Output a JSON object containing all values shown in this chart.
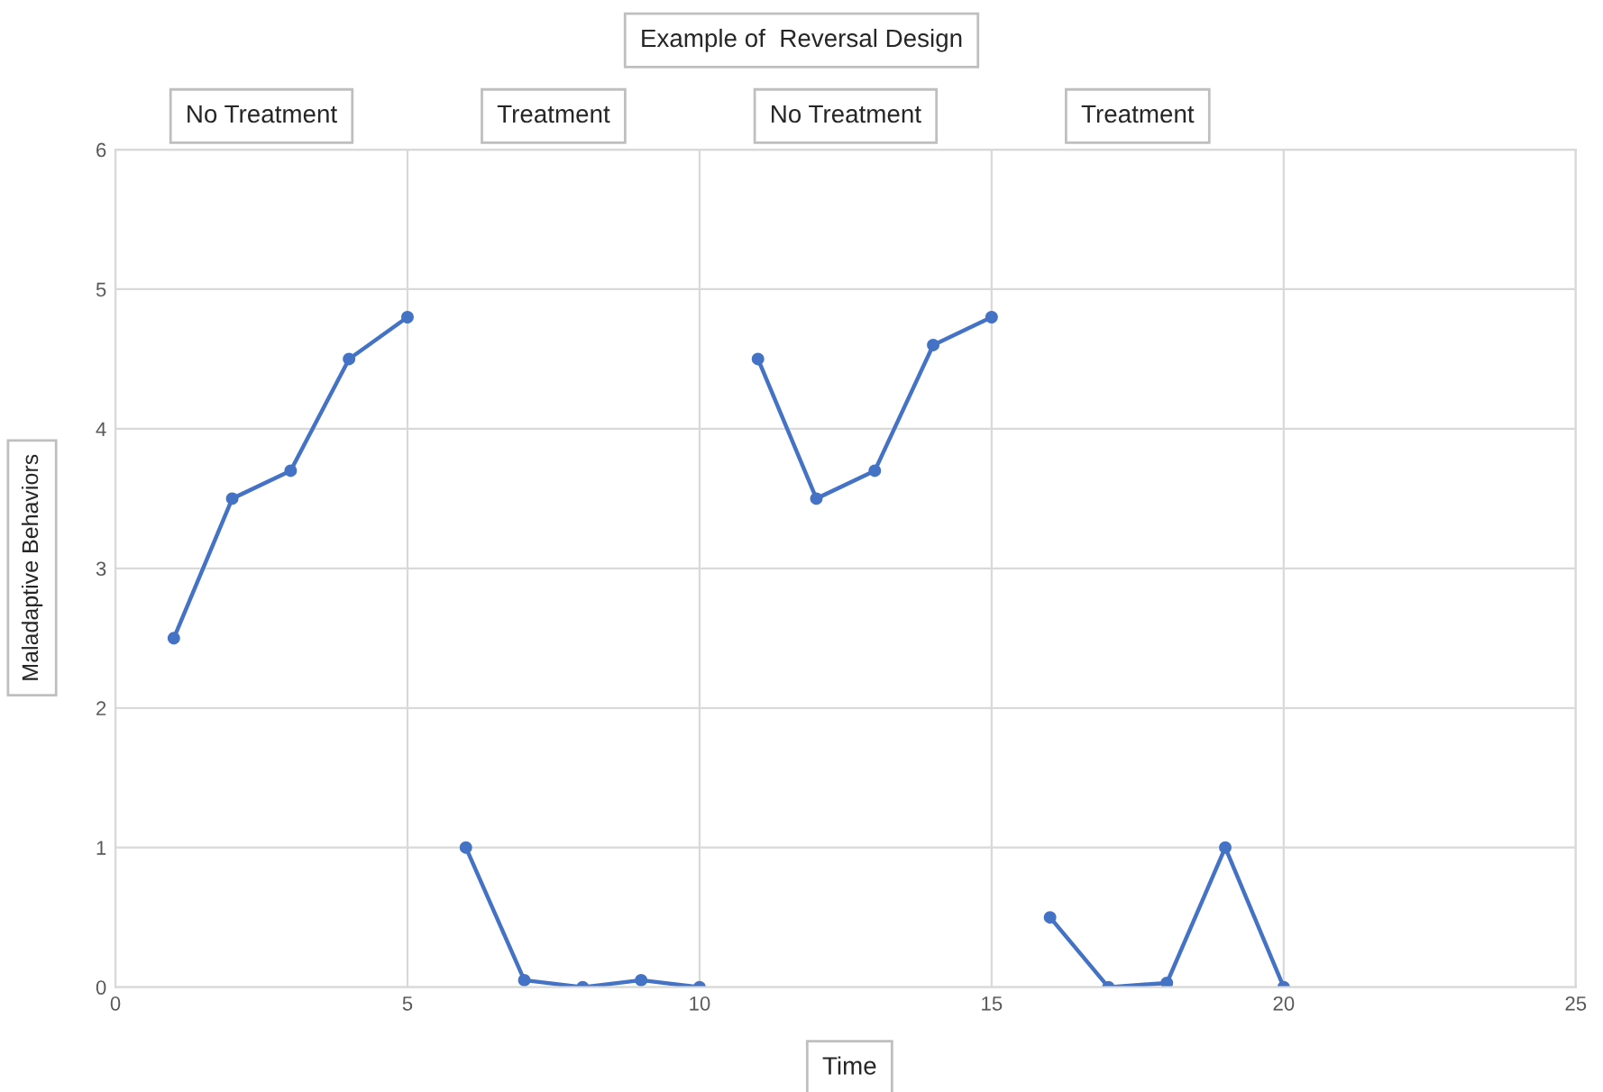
{
  "chart_data": {
    "type": "line",
    "title": "Example of  Reversal Design",
    "xlabel": "Time",
    "ylabel": "Maladaptive Behaviors",
    "series": [
      {
        "color": "#4472c4",
        "x": [
          1,
          2,
          3,
          4,
          5
        ],
        "values": [
          2.5,
          3.5,
          3.7,
          4.5,
          4.8
        ]
      },
      {
        "color": "#4472c4",
        "x": [
          6,
          7,
          8,
          9,
          10
        ],
        "values": [
          1.0,
          0.05,
          0,
          0.05,
          0
        ]
      },
      {
        "color": "#4472c4",
        "x": [
          11,
          12,
          13,
          14,
          15
        ],
        "values": [
          4.5,
          3.5,
          3.7,
          4.6,
          4.8
        ]
      },
      {
        "color": "#4472c4",
        "x": [
          16,
          17,
          18,
          19,
          20
        ],
        "values": [
          0.5,
          0,
          0.03,
          1.0,
          0
        ]
      }
    ],
    "annotations": [
      "No Treatment",
      "Treatment",
      "No Treatment",
      "Treatment"
    ],
    "xlim": [
      0,
      25
    ],
    "xticks": [
      0,
      5,
      10,
      15,
      20,
      25
    ],
    "ylim": [
      0,
      6
    ],
    "yticks": [
      0,
      1,
      2,
      3,
      4,
      5,
      6
    ],
    "grid": true,
    "marker": "circle",
    "line_style": "solid"
  }
}
